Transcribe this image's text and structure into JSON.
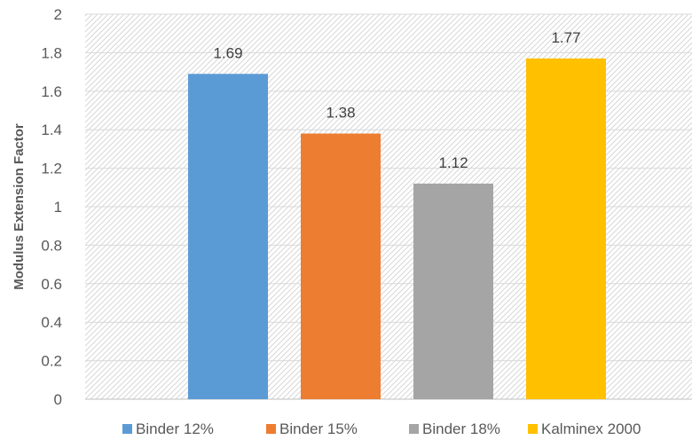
{
  "chart_data": {
    "type": "bar",
    "title": "",
    "xlabel": "",
    "ylabel": "Modulus Extension Factor",
    "ylim": [
      0,
      2
    ],
    "yticks": [
      "0",
      "0.2",
      "0.4",
      "0.6",
      "0.8",
      "1",
      "1.2",
      "1.4",
      "1.6",
      "1.8",
      "2"
    ],
    "grid": true,
    "legend_position": "bottom",
    "series": [
      {
        "name": "Binder 12%",
        "value": 1.69,
        "label": "1.69",
        "color": "#5b9bd5"
      },
      {
        "name": "Binder 15%",
        "value": 1.38,
        "label": "1.38",
        "color": "#ed7d31"
      },
      {
        "name": "Binder 18%",
        "value": 1.12,
        "label": "1.12",
        "color": "#a5a5a5"
      },
      {
        "name": "Kalminex 2000",
        "value": 1.77,
        "label": "1.77",
        "color": "#ffc000"
      }
    ]
  }
}
